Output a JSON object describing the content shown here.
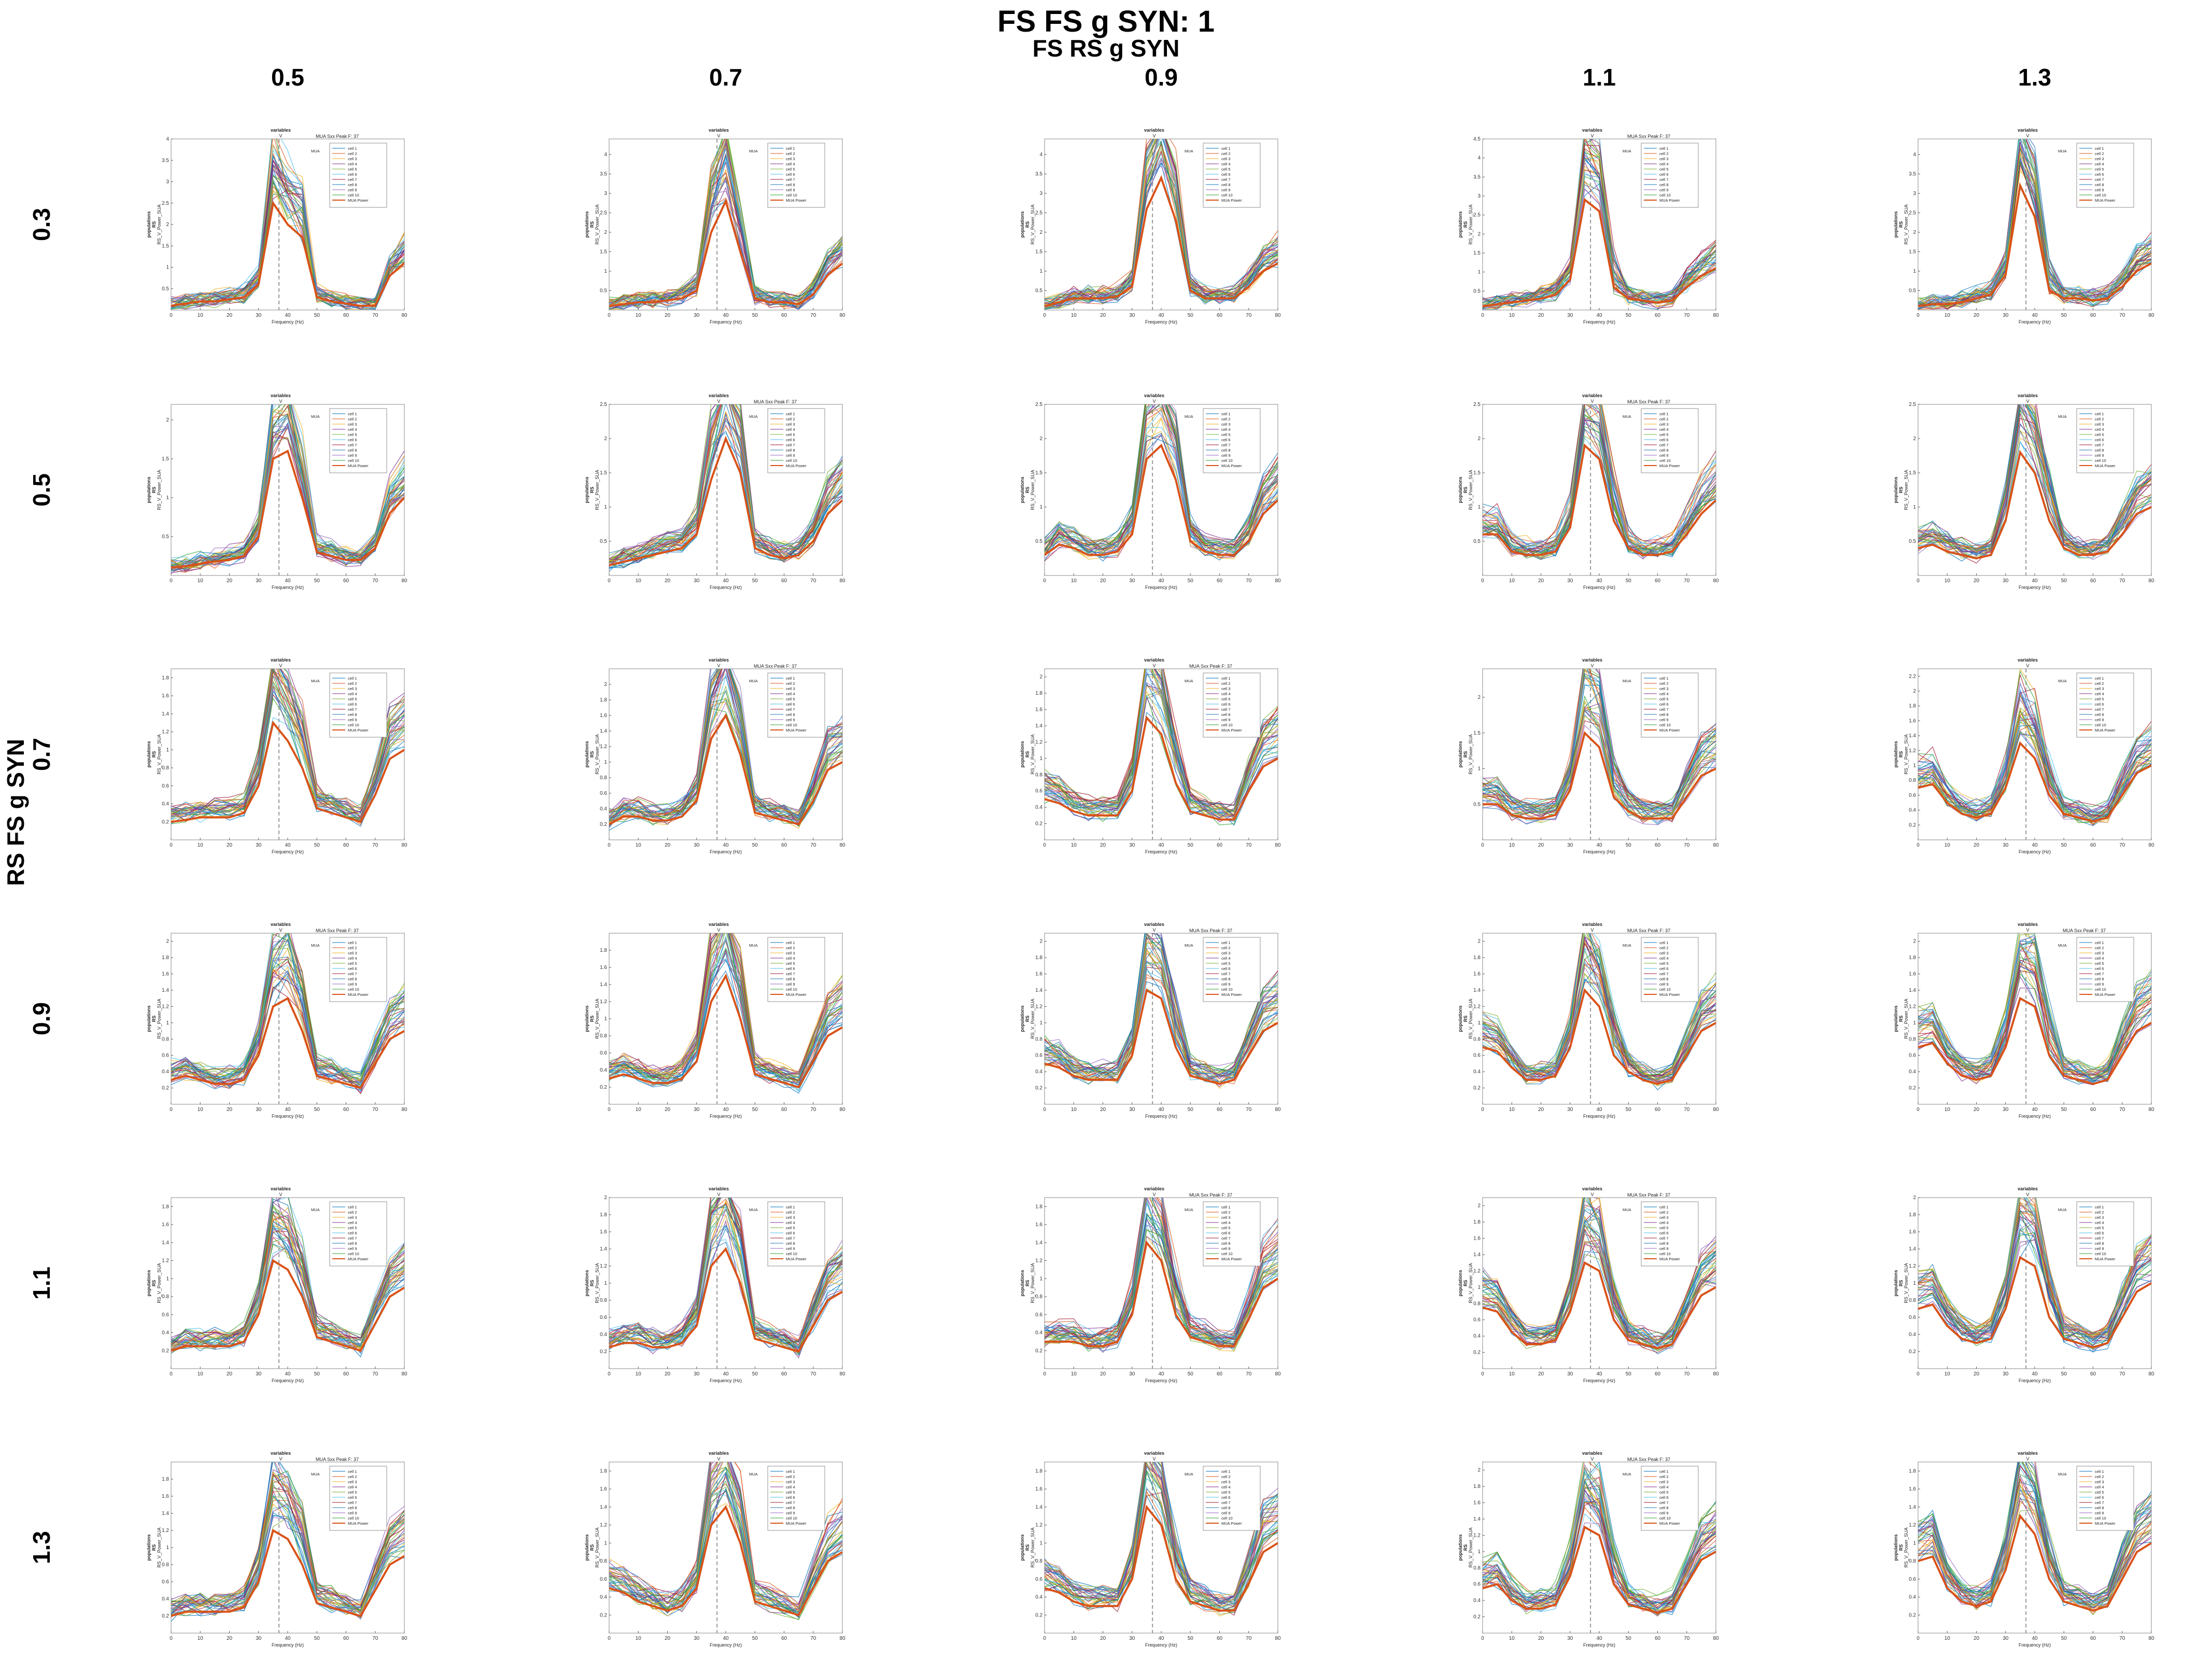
{
  "figure": {
    "title": "FS FS g SYN: 1",
    "col_title": "FS RS g SYN",
    "row_title": "RS FS g SYN",
    "col_values": [
      "0.5",
      "0.7",
      "0.9",
      "1.1",
      "1.3"
    ],
    "row_values": [
      "0.3",
      "0.5",
      "0.7",
      "0.9",
      "1.1",
      "1.3"
    ]
  },
  "panel_text": {
    "header": "variables",
    "header_symbol": "V",
    "ylabel_line1": "populations",
    "ylabel_line2": "RS",
    "ylabel_line3": "RS_V_Power_SUA",
    "xlabel": "Frequency (Hz)",
    "legend_label": "MUA",
    "mua_peak_label": "MUA Sxx Peak F: 37",
    "legend_items": [
      "cell 1",
      "cell 2",
      "cell 3",
      "cell 4",
      "cell 5",
      "cell 6",
      "cell 7",
      "cell 8",
      "cell 9",
      "cell 10",
      "MUA Power"
    ]
  },
  "colors": {
    "mua": "#d95319",
    "cells": [
      "#0072bd",
      "#d95319",
      "#edb120",
      "#7e2f8e",
      "#77ac30",
      "#4dbeee",
      "#a2142f",
      "#1f77b4",
      "#9467bd",
      "#2ca02c"
    ],
    "marker": "#999999"
  },
  "chart_data": {
    "type": "line",
    "x": [
      0,
      5,
      10,
      15,
      20,
      25,
      30,
      35,
      40,
      45,
      50,
      55,
      60,
      65,
      70,
      75,
      80
    ],
    "xlim": [
      0,
      80
    ],
    "xticks": [
      0,
      10,
      20,
      30,
      40,
      50,
      60,
      70,
      80
    ],
    "marker_x": 37,
    "peak_frequency": 37,
    "grid": false,
    "legend_position": "top-right",
    "panels": [
      {
        "row": "0.3",
        "col": "0.5",
        "ylim": [
          0,
          4
        ],
        "yticks": [
          0.5,
          1,
          1.5,
          2,
          2.5,
          3,
          3.5,
          4
        ],
        "show_peak_label": true,
        "mua": [
          0.1,
          0.15,
          0.2,
          0.2,
          0.25,
          0.3,
          0.6,
          2.5,
          2.0,
          1.7,
          0.3,
          0.2,
          0.15,
          0.1,
          0.1,
          0.8,
          1.1
        ]
      },
      {
        "row": "0.3",
        "col": "0.7",
        "ylim": [
          0,
          4.4
        ],
        "yticks": [
          0.5,
          1,
          1.5,
          2,
          2.5,
          3,
          3.5,
          4
        ],
        "show_peak_label": false,
        "mua": [
          0.1,
          0.15,
          0.2,
          0.2,
          0.25,
          0.3,
          0.5,
          2.0,
          2.8,
          1.5,
          0.3,
          0.2,
          0.2,
          0.15,
          0.4,
          0.9,
          1.2
        ]
      },
      {
        "row": "0.3",
        "col": "0.9",
        "ylim": [
          0,
          4.4
        ],
        "yticks": [
          0.5,
          1,
          1.5,
          2,
          2.5,
          3,
          3.5,
          4
        ],
        "show_peak_label": false,
        "mua": [
          0.1,
          0.2,
          0.3,
          0.3,
          0.3,
          0.35,
          0.6,
          2.6,
          3.4,
          2.3,
          0.5,
          0.3,
          0.3,
          0.3,
          0.6,
          1.0,
          1.2
        ]
      },
      {
        "row": "0.3",
        "col": "1.1",
        "ylim": [
          0,
          4.5
        ],
        "yticks": [
          0.5,
          1,
          1.5,
          2,
          2.5,
          3,
          3.5,
          4,
          4.5
        ],
        "show_peak_label": true,
        "mua": [
          0.1,
          0.15,
          0.2,
          0.25,
          0.3,
          0.4,
          0.8,
          2.9,
          2.6,
          0.6,
          0.3,
          0.25,
          0.2,
          0.25,
          0.6,
          0.9,
          1.1
        ]
      },
      {
        "row": "0.3",
        "col": "1.3",
        "ylim": [
          0,
          4.4
        ],
        "yticks": [
          0.5,
          1,
          1.5,
          2,
          2.5,
          3,
          3.5,
          4
        ],
        "show_peak_label": false,
        "mua": [
          0.1,
          0.15,
          0.15,
          0.2,
          0.3,
          0.4,
          0.9,
          3.2,
          2.4,
          0.5,
          0.3,
          0.3,
          0.25,
          0.3,
          0.6,
          1.0,
          1.2
        ]
      },
      {
        "row": "0.5",
        "col": "0.5",
        "ylim": [
          0,
          2.2
        ],
        "yticks": [
          0.5,
          1,
          1.5,
          2
        ],
        "show_peak_label": false,
        "mua": [
          0.1,
          0.12,
          0.15,
          0.18,
          0.2,
          0.25,
          0.5,
          1.5,
          1.6,
          1.0,
          0.3,
          0.25,
          0.2,
          0.2,
          0.35,
          0.8,
          1.0
        ]
      },
      {
        "row": "0.5",
        "col": "0.7",
        "ylim": [
          0,
          2.5
        ],
        "yticks": [
          0.5,
          1,
          1.5,
          2,
          2.5
        ],
        "show_peak_label": true,
        "mua": [
          0.15,
          0.2,
          0.25,
          0.3,
          0.35,
          0.4,
          0.6,
          1.4,
          2.0,
          1.5,
          0.4,
          0.3,
          0.25,
          0.3,
          0.5,
          0.9,
          1.1
        ]
      },
      {
        "row": "0.5",
        "col": "0.9",
        "ylim": [
          0,
          2.5
        ],
        "yticks": [
          0.5,
          1,
          1.5,
          2,
          2.5
        ],
        "show_peak_label": false,
        "mua": [
          0.3,
          0.45,
          0.4,
          0.3,
          0.3,
          0.35,
          0.6,
          1.7,
          1.9,
          1.4,
          0.5,
          0.35,
          0.3,
          0.3,
          0.5,
          0.9,
          1.1
        ]
      },
      {
        "row": "0.5",
        "col": "1.1",
        "ylim": [
          0,
          2.5
        ],
        "yticks": [
          0.5,
          1,
          1.5,
          2,
          2.5
        ],
        "show_peak_label": true,
        "mua": [
          0.6,
          0.6,
          0.35,
          0.3,
          0.3,
          0.35,
          0.7,
          1.9,
          1.7,
          0.8,
          0.4,
          0.3,
          0.3,
          0.35,
          0.6,
          0.9,
          1.1
        ]
      },
      {
        "row": "0.5",
        "col": "1.3",
        "ylim": [
          0,
          2.5
        ],
        "yticks": [
          0.5,
          1,
          1.5,
          2,
          2.5
        ],
        "show_peak_label": false,
        "mua": [
          0.4,
          0.45,
          0.35,
          0.3,
          0.25,
          0.3,
          0.8,
          1.8,
          1.5,
          0.8,
          0.4,
          0.3,
          0.3,
          0.35,
          0.6,
          0.9,
          1.0
        ]
      },
      {
        "row": "0.7",
        "col": "0.5",
        "ylim": [
          0,
          1.9
        ],
        "yticks": [
          0.2,
          0.4,
          0.6,
          0.8,
          1,
          1.2,
          1.4,
          1.6,
          1.8
        ],
        "show_peak_label": false,
        "mua": [
          0.2,
          0.22,
          0.25,
          0.25,
          0.25,
          0.3,
          0.6,
          1.3,
          1.1,
          0.8,
          0.35,
          0.3,
          0.25,
          0.2,
          0.5,
          0.9,
          1.0
        ]
      },
      {
        "row": "0.7",
        "col": "0.7",
        "ylim": [
          0,
          2.2
        ],
        "yticks": [
          0.2,
          0.4,
          0.6,
          0.8,
          1,
          1.2,
          1.4,
          1.6,
          1.8,
          2
        ],
        "show_peak_label": true,
        "mua": [
          0.2,
          0.3,
          0.3,
          0.25,
          0.25,
          0.3,
          0.5,
          1.3,
          1.6,
          1.1,
          0.35,
          0.3,
          0.25,
          0.2,
          0.5,
          0.9,
          1.0
        ]
      },
      {
        "row": "0.7",
        "col": "0.9",
        "ylim": [
          0,
          2.1
        ],
        "yticks": [
          0.2,
          0.4,
          0.6,
          0.8,
          1,
          1.2,
          1.4,
          1.6,
          1.8,
          2
        ],
        "show_peak_label": true,
        "mua": [
          0.5,
          0.45,
          0.35,
          0.3,
          0.3,
          0.3,
          0.6,
          1.5,
          1.3,
          0.7,
          0.35,
          0.3,
          0.25,
          0.25,
          0.6,
          0.9,
          1.0
        ]
      },
      {
        "row": "0.7",
        "col": "1.1",
        "ylim": [
          0,
          2.4
        ],
        "yticks": [
          0.5,
          1,
          1.5,
          2
        ],
        "show_peak_label": false,
        "mua": [
          0.5,
          0.5,
          0.35,
          0.3,
          0.3,
          0.35,
          0.7,
          1.5,
          1.3,
          0.6,
          0.4,
          0.3,
          0.3,
          0.3,
          0.6,
          0.9,
          1.0
        ]
      },
      {
        "row": "0.7",
        "col": "1.3",
        "ylim": [
          0,
          2.3
        ],
        "yticks": [
          0.2,
          0.4,
          0.6,
          0.8,
          1,
          1.2,
          1.4,
          1.6,
          1.8,
          2,
          2.2
        ],
        "show_peak_label": false,
        "mua": [
          0.7,
          0.75,
          0.5,
          0.35,
          0.3,
          0.35,
          0.7,
          1.3,
          1.1,
          0.6,
          0.35,
          0.3,
          0.25,
          0.3,
          0.6,
          0.9,
          1.0
        ]
      },
      {
        "row": "0.9",
        "col": "0.5",
        "ylim": [
          0,
          2.1
        ],
        "yticks": [
          0.2,
          0.4,
          0.6,
          0.8,
          1,
          1.2,
          1.4,
          1.6,
          1.8,
          2
        ],
        "show_peak_label": true,
        "mua": [
          0.3,
          0.35,
          0.3,
          0.25,
          0.25,
          0.3,
          0.6,
          1.2,
          1.3,
          0.9,
          0.35,
          0.3,
          0.25,
          0.2,
          0.5,
          0.8,
          0.9
        ]
      },
      {
        "row": "0.9",
        "col": "0.7",
        "ylim": [
          0,
          2.0
        ],
        "yticks": [
          0.2,
          0.4,
          0.6,
          0.8,
          1,
          1.2,
          1.4,
          1.6,
          1.8
        ],
        "show_peak_label": false,
        "mua": [
          0.3,
          0.35,
          0.3,
          0.25,
          0.25,
          0.3,
          0.5,
          1.2,
          1.5,
          1.0,
          0.35,
          0.3,
          0.25,
          0.2,
          0.5,
          0.8,
          0.9
        ]
      },
      {
        "row": "0.9",
        "col": "0.9",
        "ylim": [
          0,
          2.1
        ],
        "yticks": [
          0.2,
          0.4,
          0.6,
          0.8,
          1,
          1.2,
          1.4,
          1.6,
          1.8,
          2
        ],
        "show_peak_label": true,
        "mua": [
          0.5,
          0.45,
          0.35,
          0.3,
          0.3,
          0.3,
          0.6,
          1.4,
          1.3,
          0.7,
          0.35,
          0.3,
          0.25,
          0.3,
          0.6,
          0.9,
          1.0
        ]
      },
      {
        "row": "0.9",
        "col": "1.1",
        "ylim": [
          0,
          2.1
        ],
        "yticks": [
          0.2,
          0.4,
          0.6,
          0.8,
          1,
          1.2,
          1.4,
          1.6,
          1.8,
          2
        ],
        "show_peak_label": true,
        "mua": [
          0.7,
          0.65,
          0.45,
          0.3,
          0.3,
          0.35,
          0.7,
          1.4,
          1.2,
          0.6,
          0.4,
          0.3,
          0.25,
          0.3,
          0.6,
          0.9,
          1.0
        ]
      },
      {
        "row": "0.9",
        "col": "1.3",
        "ylim": [
          0,
          2.1
        ],
        "yticks": [
          0.2,
          0.4,
          0.6,
          0.8,
          1,
          1.2,
          1.4,
          1.6,
          1.8,
          2
        ],
        "show_peak_label": true,
        "mua": [
          0.7,
          0.75,
          0.5,
          0.35,
          0.3,
          0.35,
          0.7,
          1.3,
          1.2,
          0.6,
          0.35,
          0.3,
          0.25,
          0.3,
          0.6,
          0.9,
          1.0
        ]
      },
      {
        "row": "1.1",
        "col": "0.5",
        "ylim": [
          0,
          1.9
        ],
        "yticks": [
          0.2,
          0.4,
          0.6,
          0.8,
          1,
          1.2,
          1.4,
          1.6,
          1.8
        ],
        "show_peak_label": false,
        "mua": [
          0.2,
          0.25,
          0.25,
          0.25,
          0.25,
          0.3,
          0.6,
          1.2,
          1.1,
          0.8,
          0.35,
          0.3,
          0.25,
          0.2,
          0.5,
          0.8,
          0.9
        ]
      },
      {
        "row": "1.1",
        "col": "0.7",
        "ylim": [
          0,
          2.0
        ],
        "yticks": [
          0.2,
          0.4,
          0.6,
          0.8,
          1,
          1.2,
          1.4,
          1.6,
          1.8,
          2
        ],
        "show_peak_label": false,
        "mua": [
          0.25,
          0.3,
          0.3,
          0.25,
          0.25,
          0.3,
          0.5,
          1.2,
          1.4,
          1.0,
          0.35,
          0.3,
          0.25,
          0.2,
          0.5,
          0.8,
          0.9
        ]
      },
      {
        "row": "1.1",
        "col": "0.9",
        "ylim": [
          0,
          1.9
        ],
        "yticks": [
          0.2,
          0.4,
          0.6,
          0.8,
          1,
          1.2,
          1.4,
          1.6,
          1.8
        ],
        "show_peak_label": true,
        "mua": [
          0.3,
          0.3,
          0.3,
          0.25,
          0.25,
          0.3,
          0.6,
          1.4,
          1.2,
          0.6,
          0.35,
          0.3,
          0.25,
          0.25,
          0.55,
          0.9,
          1.0
        ]
      },
      {
        "row": "1.1",
        "col": "1.1",
        "ylim": [
          0,
          2.1
        ],
        "yticks": [
          0.2,
          0.4,
          0.6,
          0.8,
          1,
          1.2,
          1.4,
          1.6,
          1.8,
          2
        ],
        "show_peak_label": true,
        "mua": [
          0.75,
          0.7,
          0.45,
          0.3,
          0.3,
          0.35,
          0.7,
          1.3,
          1.2,
          0.6,
          0.35,
          0.3,
          0.25,
          0.3,
          0.6,
          0.9,
          1.0
        ]
      },
      {
        "row": "1.1",
        "col": "1.3",
        "ylim": [
          0,
          2.0
        ],
        "yticks": [
          0.2,
          0.4,
          0.6,
          0.8,
          1,
          1.2,
          1.4,
          1.6,
          1.8,
          2
        ],
        "show_peak_label": false,
        "mua": [
          0.7,
          0.75,
          0.5,
          0.35,
          0.3,
          0.35,
          0.7,
          1.3,
          1.2,
          0.6,
          0.35,
          0.3,
          0.25,
          0.3,
          0.6,
          0.9,
          1.0
        ]
      },
      {
        "row": "1.3",
        "col": "0.5",
        "ylim": [
          0,
          2.0
        ],
        "yticks": [
          0.2,
          0.4,
          0.6,
          0.8,
          1,
          1.2,
          1.4,
          1.6,
          1.8
        ],
        "show_peak_label": true,
        "mua": [
          0.2,
          0.25,
          0.25,
          0.25,
          0.25,
          0.3,
          0.6,
          1.2,
          1.1,
          0.8,
          0.35,
          0.3,
          0.25,
          0.2,
          0.5,
          0.8,
          0.9
        ]
      },
      {
        "row": "1.3",
        "col": "0.7",
        "ylim": [
          0,
          1.9
        ],
        "yticks": [
          0.2,
          0.4,
          0.6,
          0.8,
          1,
          1.2,
          1.4,
          1.6,
          1.8
        ],
        "show_peak_label": false,
        "mua": [
          0.5,
          0.45,
          0.35,
          0.3,
          0.25,
          0.3,
          0.5,
          1.2,
          1.4,
          1.0,
          0.35,
          0.3,
          0.25,
          0.2,
          0.5,
          0.8,
          0.9
        ]
      },
      {
        "row": "1.3",
        "col": "0.9",
        "ylim": [
          0,
          1.9
        ],
        "yticks": [
          0.2,
          0.4,
          0.6,
          0.8,
          1,
          1.2,
          1.4,
          1.6,
          1.8
        ],
        "show_peak_label": false,
        "mua": [
          0.5,
          0.45,
          0.35,
          0.3,
          0.3,
          0.3,
          0.6,
          1.4,
          1.2,
          0.6,
          0.35,
          0.3,
          0.25,
          0.25,
          0.55,
          0.9,
          1.0
        ]
      },
      {
        "row": "1.3",
        "col": "1.1",
        "ylim": [
          0,
          2.1
        ],
        "yticks": [
          0.2,
          0.4,
          0.6,
          0.8,
          1,
          1.2,
          1.4,
          1.6,
          1.8,
          2
        ],
        "show_peak_label": true,
        "mua": [
          0.55,
          0.6,
          0.4,
          0.3,
          0.3,
          0.35,
          0.7,
          1.3,
          1.2,
          0.6,
          0.35,
          0.3,
          0.25,
          0.3,
          0.6,
          0.9,
          1.0
        ]
      },
      {
        "row": "1.3",
        "col": "1.3",
        "ylim": [
          0,
          1.9
        ],
        "yticks": [
          0.2,
          0.4,
          0.6,
          0.8,
          1,
          1.2,
          1.4,
          1.6,
          1.8
        ],
        "show_peak_label": false,
        "mua": [
          0.8,
          0.85,
          0.5,
          0.35,
          0.3,
          0.35,
          0.7,
          1.3,
          1.1,
          0.6,
          0.35,
          0.3,
          0.25,
          0.3,
          0.6,
          0.9,
          1.0
        ]
      }
    ]
  }
}
